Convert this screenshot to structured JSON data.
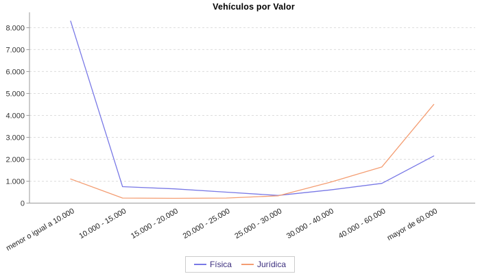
{
  "title": "Vehículos por Valor",
  "colors": {
    "series_fisica": "#7878e6",
    "series_juridica": "#f49d72",
    "grid": "#dcdcdc",
    "axis": "#9a9a9a",
    "tick_text": "#333333",
    "legend_text": "#3b2e7e",
    "legend_border": "#cccccc",
    "background": "#ffffff"
  },
  "chart_data": {
    "type": "line",
    "title": "Vehículos por Valor",
    "categories": [
      "menor o igual a 10.000",
      "10.000 - 15.000",
      "15.000 - 20.000",
      "20.000 - 25.000",
      "25.000 - 30.000",
      "30.000 - 40.000",
      "40.000 - 60.000",
      "mayor de 60.000"
    ],
    "series": [
      {
        "name": "Física",
        "color": "#7878e6",
        "values": [
          8300,
          750,
          650,
          500,
          350,
          600,
          900,
          2150
        ]
      },
      {
        "name": "Jurídica",
        "color": "#f49d72",
        "values": [
          1100,
          230,
          220,
          230,
          330,
          950,
          1650,
          4500
        ]
      }
    ],
    "xlabel": "",
    "ylabel": "",
    "ylim": [
      0,
      8700
    ],
    "yticks": [
      0,
      1000,
      2000,
      3000,
      4000,
      5000,
      6000,
      7000,
      8000
    ],
    "ytick_labels": [
      "0",
      "1.000",
      "2.000",
      "3.000",
      "4.000",
      "5.000",
      "6.000",
      "7.000",
      "8.000"
    ],
    "grid": true,
    "grid_style": "dashed",
    "legend_position": "bottom",
    "x_label_rotation_deg": -30
  },
  "legend": {
    "items": [
      {
        "label": "Física",
        "color": "#7878e6"
      },
      {
        "label": "Jurídica",
        "color": "#f49d72"
      }
    ]
  }
}
